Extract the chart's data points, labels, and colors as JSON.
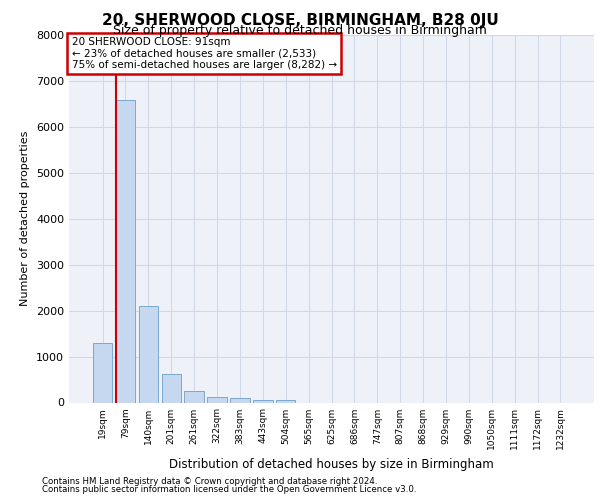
{
  "title": "20, SHERWOOD CLOSE, BIRMINGHAM, B28 0JU",
  "subtitle": "Size of property relative to detached houses in Birmingham",
  "xlabel": "Distribution of detached houses by size in Birmingham",
  "ylabel": "Number of detached properties",
  "footnote1": "Contains HM Land Registry data © Crown copyright and database right 2024.",
  "footnote2": "Contains public sector information licensed under the Open Government Licence v3.0.",
  "bar_labels": [
    "19sqm",
    "79sqm",
    "140sqm",
    "201sqm",
    "261sqm",
    "322sqm",
    "383sqm",
    "443sqm",
    "504sqm",
    "565sqm",
    "625sqm",
    "686sqm",
    "747sqm",
    "807sqm",
    "868sqm",
    "929sqm",
    "990sqm",
    "1050sqm",
    "1111sqm",
    "1172sqm",
    "1232sqm"
  ],
  "bar_values": [
    1300,
    6580,
    2100,
    620,
    260,
    130,
    90,
    60,
    60,
    0,
    0,
    0,
    0,
    0,
    0,
    0,
    0,
    0,
    0,
    0,
    0
  ],
  "bar_color": "#c5d8f0",
  "bar_edgecolor": "#7aa8cc",
  "highlight_bar_index": 1,
  "highlight_line_color": "#cc0000",
  "ylim": [
    0,
    8000
  ],
  "yticks": [
    0,
    1000,
    2000,
    3000,
    4000,
    5000,
    6000,
    7000,
    8000
  ],
  "annotation_text": "20 SHERWOOD CLOSE: 91sqm\n← 23% of detached houses are smaller (2,533)\n75% of semi-detached houses are larger (8,282) →",
  "annotation_box_color": "#ffffff",
  "annotation_box_edgecolor": "#cc0000",
  "grid_color": "#d0d8e8",
  "bg_color": "#eef2f8",
  "title_fontsize": 11,
  "subtitle_fontsize": 9,
  "ylabel_fontsize": 8,
  "xlabel_fontsize": 8.5,
  "tick_fontsize": 8,
  "xtick_fontsize": 6.5,
  "footnote_fontsize": 6.2,
  "annotation_fontsize": 7.5
}
